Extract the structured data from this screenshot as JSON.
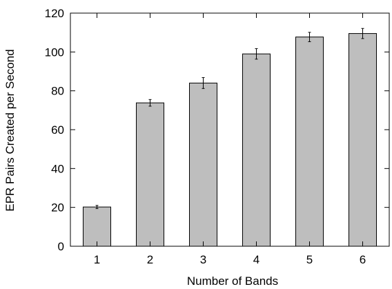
{
  "chart_data": {
    "type": "bar",
    "title": "",
    "xlabel": "Number of Bands",
    "ylabel": "EPR Pairs Created per Second",
    "categories": [
      "1",
      "2",
      "3",
      "4",
      "5",
      "6"
    ],
    "values": [
      20.2,
      73.8,
      84.0,
      99.0,
      107.7,
      109.5
    ],
    "errors": [
      0.8,
      1.7,
      2.8,
      2.7,
      2.4,
      2.6
    ],
    "ylim": [
      0,
      120
    ],
    "yticks": [
      0,
      20,
      40,
      60,
      80,
      100,
      120
    ],
    "grid": false,
    "legend": "none",
    "colors": {
      "bar_fill": "#bebebe",
      "bar_stroke": "#000000",
      "axis": "#000000",
      "error_bar": "#000000"
    }
  }
}
